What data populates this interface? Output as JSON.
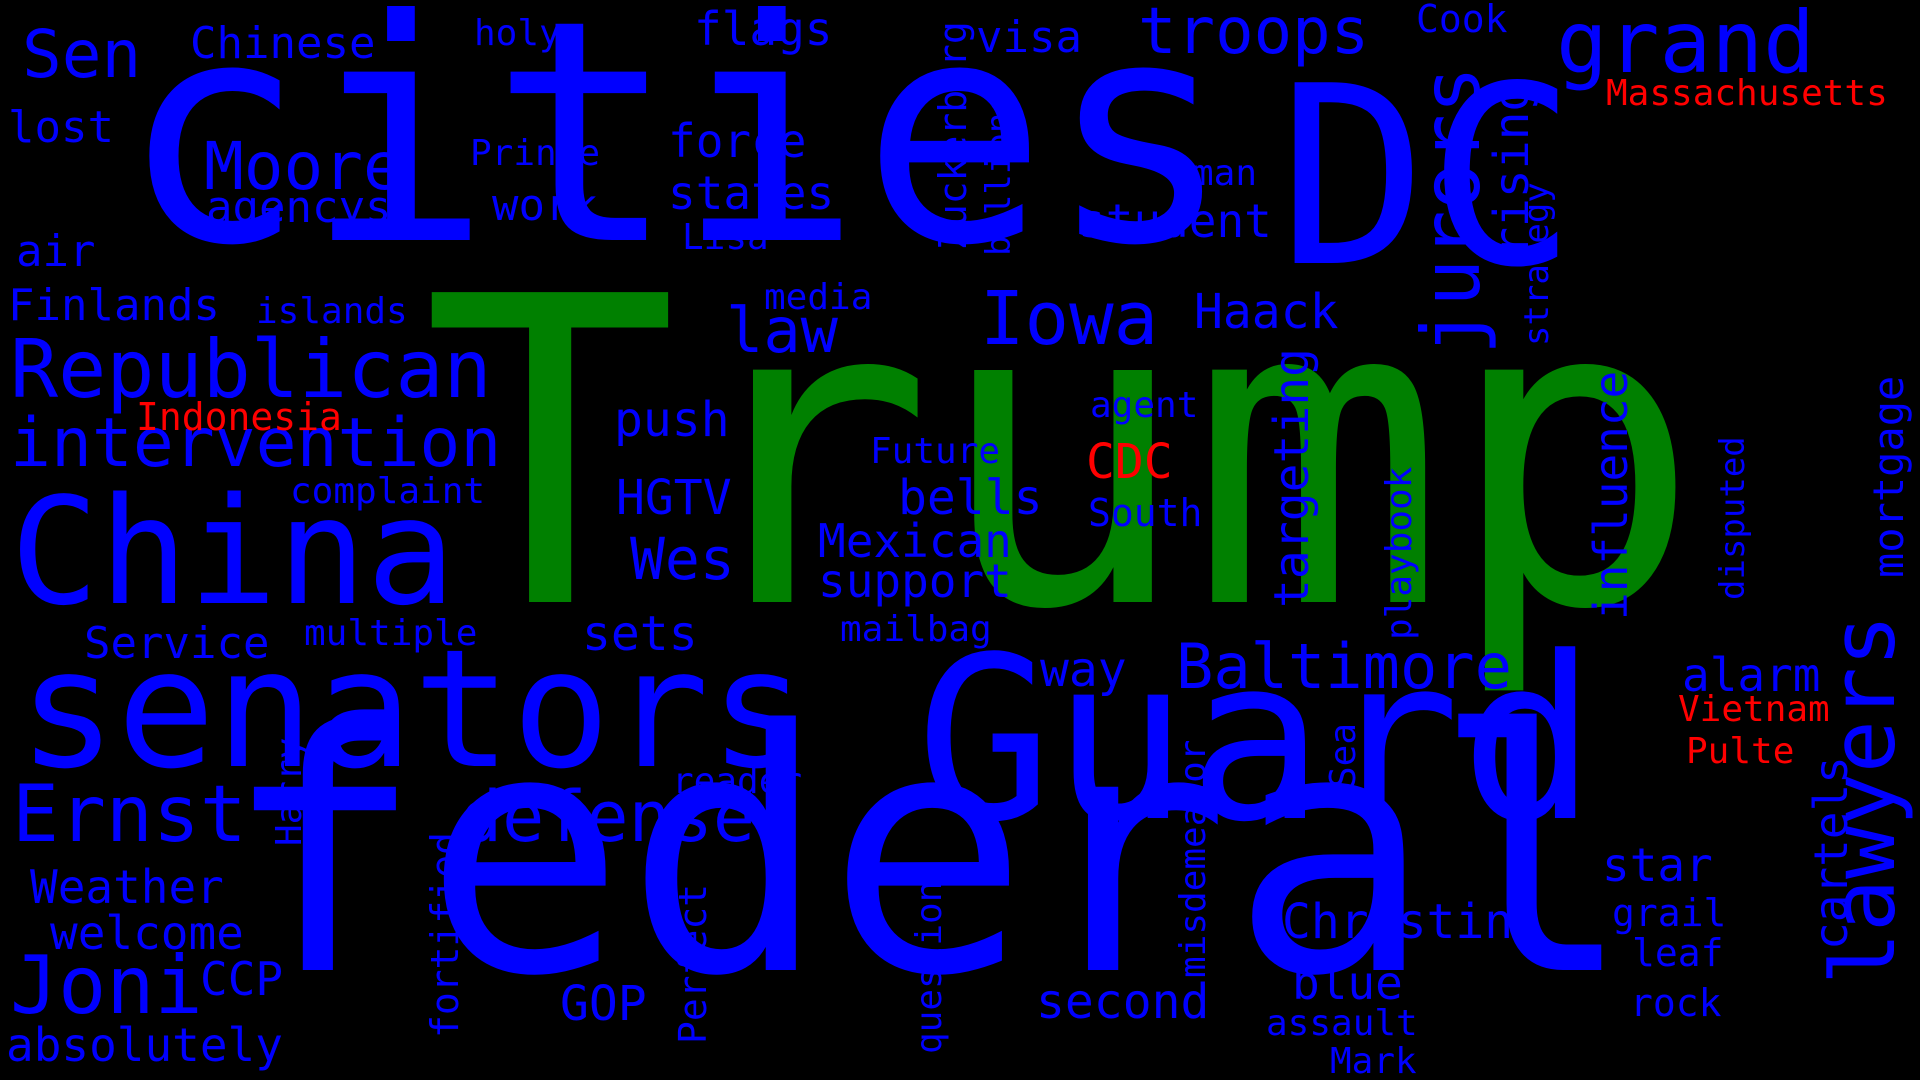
{
  "colors": {
    "background": "#000000",
    "blue": "#0000ff",
    "green": "#008000",
    "red": "#ff0000"
  },
  "words": [
    {
      "text": "Trump",
      "color": "green"
    },
    {
      "text": "federal",
      "color": "blue"
    },
    {
      "text": "cities",
      "color": "blue"
    },
    {
      "text": "DC",
      "color": "blue"
    },
    {
      "text": "Guard",
      "color": "blue"
    },
    {
      "text": "senators",
      "color": "blue"
    },
    {
      "text": "China",
      "color": "blue"
    },
    {
      "text": "Republican",
      "color": "blue"
    },
    {
      "text": "intervention",
      "color": "blue"
    },
    {
      "text": "Ernst",
      "color": "blue"
    },
    {
      "text": "Joni",
      "color": "blue"
    },
    {
      "text": "jurors",
      "color": "blue"
    },
    {
      "text": "lawyers",
      "color": "blue"
    },
    {
      "text": "grand",
      "color": "blue"
    },
    {
      "text": "troops",
      "color": "blue"
    },
    {
      "text": "Baltimore",
      "color": "blue"
    },
    {
      "text": "defense",
      "color": "blue"
    },
    {
      "text": "Iowa",
      "color": "blue"
    },
    {
      "text": "Moore",
      "color": "blue"
    },
    {
      "text": "Sen",
      "color": "blue"
    },
    {
      "text": "law",
      "color": "blue"
    },
    {
      "text": "Wes",
      "color": "blue"
    },
    {
      "text": "Christina",
      "color": "blue"
    },
    {
      "text": "Mexican",
      "color": "blue"
    },
    {
      "text": "Chinese",
      "color": "blue"
    },
    {
      "text": "flags",
      "color": "blue"
    },
    {
      "text": "visa",
      "color": "blue"
    },
    {
      "text": "force",
      "color": "blue"
    },
    {
      "text": "states",
      "color": "blue"
    },
    {
      "text": "work",
      "color": "blue"
    },
    {
      "text": "agencys",
      "color": "blue"
    },
    {
      "text": "lost",
      "color": "blue"
    },
    {
      "text": "air",
      "color": "blue"
    },
    {
      "text": "holy",
      "color": "blue"
    },
    {
      "text": "Prince",
      "color": "blue"
    },
    {
      "text": "Lisa",
      "color": "blue"
    },
    {
      "text": "Cook",
      "color": "blue"
    },
    {
      "text": "Massachusetts",
      "color": "red"
    },
    {
      "text": "rising",
      "color": "blue"
    },
    {
      "text": "strategy",
      "color": "blue"
    },
    {
      "text": "student",
      "color": "blue"
    },
    {
      "text": "man",
      "color": "blue"
    },
    {
      "text": "Zuckerberg",
      "color": "blue"
    },
    {
      "text": "billions",
      "color": "blue"
    },
    {
      "text": "Haack",
      "color": "blue"
    },
    {
      "text": "media",
      "color": "blue"
    },
    {
      "text": "Finlands",
      "color": "blue"
    },
    {
      "text": "islands",
      "color": "blue"
    },
    {
      "text": "Indonesia",
      "color": "red"
    },
    {
      "text": "complaint",
      "color": "blue"
    },
    {
      "text": "push",
      "color": "blue"
    },
    {
      "text": "agent",
      "color": "blue"
    },
    {
      "text": "CDC",
      "color": "red"
    },
    {
      "text": "Future",
      "color": "blue"
    },
    {
      "text": "bells",
      "color": "blue"
    },
    {
      "text": "South",
      "color": "blue"
    },
    {
      "text": "HGTV",
      "color": "blue"
    },
    {
      "text": "support",
      "color": "blue"
    },
    {
      "text": "targeting",
      "color": "blue"
    },
    {
      "text": "influence",
      "color": "blue"
    },
    {
      "text": "playbook",
      "color": "blue"
    },
    {
      "text": "disputed",
      "color": "blue"
    },
    {
      "text": "mortgage",
      "color": "blue"
    },
    {
      "text": "Service",
      "color": "blue"
    },
    {
      "text": "multiple",
      "color": "blue"
    },
    {
      "text": "sets",
      "color": "blue"
    },
    {
      "text": "mailbag",
      "color": "blue"
    },
    {
      "text": "way",
      "color": "blue"
    },
    {
      "text": "alarm",
      "color": "blue"
    },
    {
      "text": "Vietnam",
      "color": "red"
    },
    {
      "text": "Pulte",
      "color": "red"
    },
    {
      "text": "cartels",
      "color": "blue"
    },
    {
      "text": "star",
      "color": "blue"
    },
    {
      "text": "grail",
      "color": "blue"
    },
    {
      "text": "leaf",
      "color": "blue"
    },
    {
      "text": "rock",
      "color": "blue"
    },
    {
      "text": "Weather",
      "color": "blue"
    },
    {
      "text": "welcome",
      "color": "blue"
    },
    {
      "text": "CCP",
      "color": "blue"
    },
    {
      "text": "absolutely",
      "color": "blue"
    },
    {
      "text": "Harry",
      "color": "blue"
    },
    {
      "text": "fortified",
      "color": "blue"
    },
    {
      "text": "reader",
      "color": "blue"
    },
    {
      "text": "GOP",
      "color": "blue"
    },
    {
      "text": "Perfect",
      "color": "blue"
    },
    {
      "text": "questions",
      "color": "blue"
    },
    {
      "text": "second",
      "color": "blue"
    },
    {
      "text": "misdemeanor",
      "color": "blue"
    },
    {
      "text": "Sea",
      "color": "blue"
    },
    {
      "text": "blue",
      "color": "blue"
    },
    {
      "text": "assault",
      "color": "blue"
    },
    {
      "text": "Mark",
      "color": "blue"
    }
  ]
}
